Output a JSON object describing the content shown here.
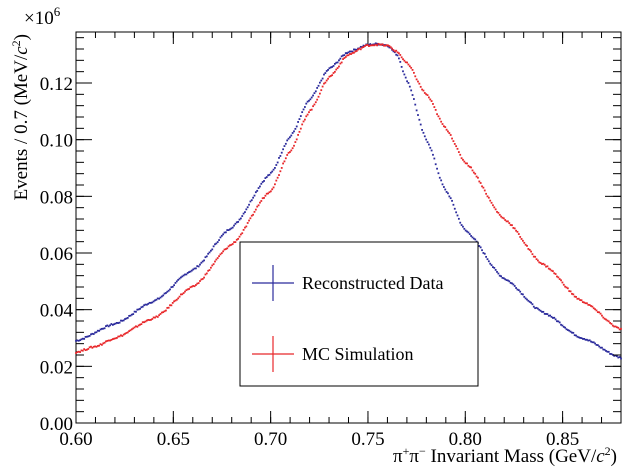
{
  "chart_data": {
    "type": "scatter",
    "xlabel_parts": [
      "π",
      "+",
      "π",
      "−",
      " Invariant Mass (GeV/",
      "c",
      "2",
      ")"
    ],
    "ylabel_parts": [
      "Events / 0.7 (MeV/",
      "c",
      "2",
      ")"
    ],
    "y_multiplier_base": "×10",
    "y_multiplier_exp": "6",
    "xlim": [
      0.6,
      0.88
    ],
    "ylim": [
      0,
      0.138
    ],
    "xticks": [
      0.6,
      0.65,
      0.7,
      0.75,
      0.8,
      0.85
    ],
    "xtick_labels": [
      "0.60",
      "0.65",
      "0.70",
      "0.75",
      "0.80",
      "0.85"
    ],
    "yticks": [
      0.0,
      0.02,
      0.04,
      0.06,
      0.08,
      0.1,
      0.12
    ],
    "ytick_labels": [
      "0.00",
      "0.02",
      "0.04",
      "0.06",
      "0.08",
      "0.10",
      "0.12"
    ],
    "legend_position": "lower-center",
    "series": [
      {
        "name": "Reconstructed Data",
        "color": "#2b2b9c",
        "x": [
          0.6,
          0.62,
          0.64,
          0.66,
          0.68,
          0.7,
          0.71,
          0.72,
          0.73,
          0.74,
          0.75,
          0.755,
          0.76,
          0.765,
          0.77,
          0.78,
          0.79,
          0.8,
          0.82,
          0.84,
          0.86,
          0.88
        ],
        "y": [
          0.029,
          0.035,
          0.043,
          0.054,
          0.069,
          0.088,
          0.101,
          0.114,
          0.125,
          0.131,
          0.1335,
          0.1338,
          0.1333,
          0.13,
          0.121,
          0.1,
          0.082,
          0.068,
          0.051,
          0.039,
          0.03,
          0.023
        ]
      },
      {
        "name": "MC Simulation",
        "color": "#e8282b",
        "x": [
          0.6,
          0.61,
          0.62,
          0.64,
          0.66,
          0.68,
          0.7,
          0.71,
          0.72,
          0.73,
          0.74,
          0.75,
          0.755,
          0.76,
          0.765,
          0.77,
          0.78,
          0.79,
          0.8,
          0.82,
          0.84,
          0.86,
          0.88
        ],
        "y": [
          0.025,
          0.027,
          0.03,
          0.037,
          0.048,
          0.063,
          0.082,
          0.096,
          0.11,
          0.122,
          0.13,
          0.1333,
          0.1336,
          0.1332,
          0.131,
          0.127,
          0.116,
          0.104,
          0.092,
          0.072,
          0.056,
          0.043,
          0.033
        ]
      }
    ]
  }
}
